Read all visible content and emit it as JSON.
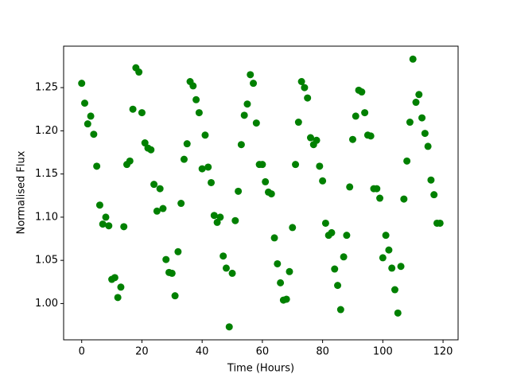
{
  "chart_data": {
    "type": "scatter",
    "x_label": "Time (Hours)",
    "y_label": "Normalised Flux",
    "color": "#008000",
    "x": [
      0,
      1,
      2,
      3,
      4,
      5,
      6,
      7,
      8,
      9,
      10,
      11,
      12,
      13,
      14,
      15,
      16,
      17,
      18,
      19,
      20,
      21,
      22,
      23,
      24,
      25,
      26,
      27,
      28,
      29,
      30,
      31,
      32,
      33,
      34,
      35,
      36,
      37,
      38,
      39,
      40,
      41,
      42,
      43,
      44,
      45,
      46,
      47,
      48,
      49,
      50,
      51,
      52,
      53,
      54,
      55,
      56,
      57,
      58,
      59,
      60,
      61,
      62,
      63,
      64,
      65,
      66,
      67,
      68,
      69,
      70,
      71,
      72,
      73,
      74,
      75,
      76,
      77,
      78,
      79,
      80,
      81,
      82,
      83,
      84,
      85,
      86,
      87,
      88,
      89,
      90,
      91,
      92,
      93,
      94,
      95,
      96,
      97,
      98,
      99,
      100,
      101,
      102,
      103,
      104,
      105,
      106,
      107,
      108,
      109,
      110,
      111,
      112,
      113,
      114,
      115,
      116,
      117,
      118,
      119
    ],
    "values": [
      1.255,
      1.232,
      1.208,
      1.217,
      1.196,
      1.159,
      1.114,
      1.092,
      1.1,
      1.09,
      1.028,
      1.03,
      1.007,
      1.019,
      1.089,
      1.161,
      1.165,
      1.225,
      1.273,
      1.268,
      1.221,
      1.186,
      1.18,
      1.178,
      1.138,
      1.107,
      1.133,
      1.11,
      1.051,
      1.036,
      1.035,
      1.009,
      1.06,
      1.116,
      1.167,
      1.185,
      1.257,
      1.252,
      1.236,
      1.221,
      1.156,
      1.195,
      1.158,
      1.14,
      1.102,
      1.094,
      1.1,
      1.055,
      1.041,
      0.973,
      1.035,
      1.096,
      1.13,
      1.184,
      1.218,
      1.231,
      1.265,
      1.255,
      1.209,
      1.161,
      1.161,
      1.141,
      1.129,
      1.127,
      1.076,
      1.046,
      1.024,
      1.004,
      1.005,
      1.037,
      1.088,
      1.161,
      1.21,
      1.257,
      1.25,
      1.238,
      1.192,
      1.184,
      1.189,
      1.159,
      1.142,
      1.093,
      1.079,
      1.082,
      1.04,
      1.021,
      0.993,
      1.054,
      1.079,
      1.135,
      1.19,
      1.217,
      1.247,
      1.245,
      1.221,
      1.195,
      1.194,
      1.133,
      1.133,
      1.122,
      1.053,
      1.079,
      1.062,
      1.041,
      1.016,
      0.989,
      1.043,
      1.121,
      1.165,
      1.21,
      1.283,
      1.233,
      1.242,
      1.215,
      1.197,
      1.182,
      1.143,
      1.126,
      1.093,
      1.093
    ],
    "xlim": [
      -6,
      125
    ],
    "ylim": [
      0.958,
      1.298
    ],
    "xticks": [
      0,
      20,
      40,
      60,
      80,
      100,
      120
    ],
    "yticks": [
      {
        "value": 1,
        "label": "1.00"
      },
      1.05,
      {
        "value": 1.1,
        "label": "1.10"
      },
      1.15,
      {
        "value": 1.2,
        "label": "1.20"
      },
      1.25
    ]
  }
}
